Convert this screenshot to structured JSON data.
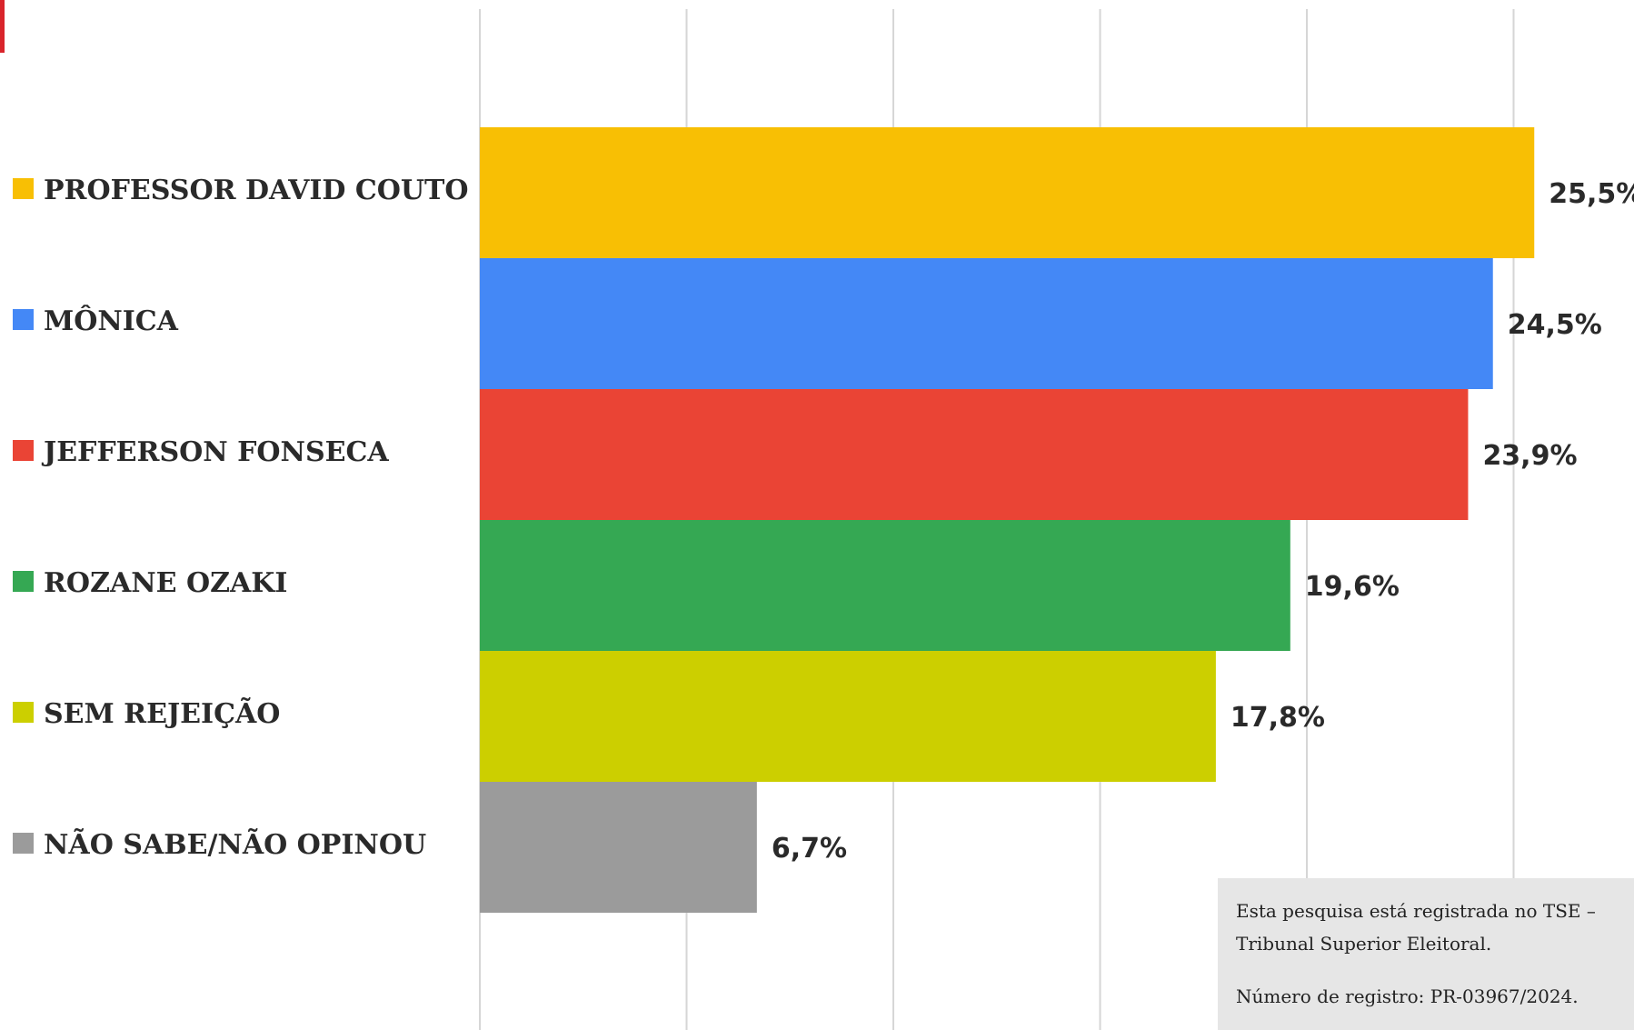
{
  "chart_data": {
    "type": "bar",
    "orientation": "horizontal",
    "categories": [
      "PROFESSOR DAVID COUTO",
      "MÔNICA",
      "JEFFERSON FONSECA",
      "ROZANE OZAKI",
      "SEM REJEIÇÃO",
      "NÃO SABE/NÃO OPINOU"
    ],
    "values": [
      25.5,
      24.5,
      23.9,
      19.6,
      17.8,
      6.7
    ],
    "value_labels": [
      "25,5%",
      "24,5%",
      "23,9%",
      "19,6%",
      "17,8%",
      "6,7%"
    ],
    "colors": [
      "#f8bf04",
      "#4488f6",
      "#ea4435",
      "#35a853",
      "#cccf00",
      "#9b9b9b"
    ],
    "xlim": [
      0,
      25
    ],
    "x_grid_step": 5,
    "grid": true,
    "legend": "left",
    "title": "",
    "xlabel": "",
    "ylabel": ""
  },
  "note": {
    "line1": "Esta pesquisa está registrada no TSE –",
    "line2": "Tribunal Superior Eleitoral.",
    "registration": "Número de registro: PR-03967/2024."
  },
  "accent_color": "#d9242b"
}
